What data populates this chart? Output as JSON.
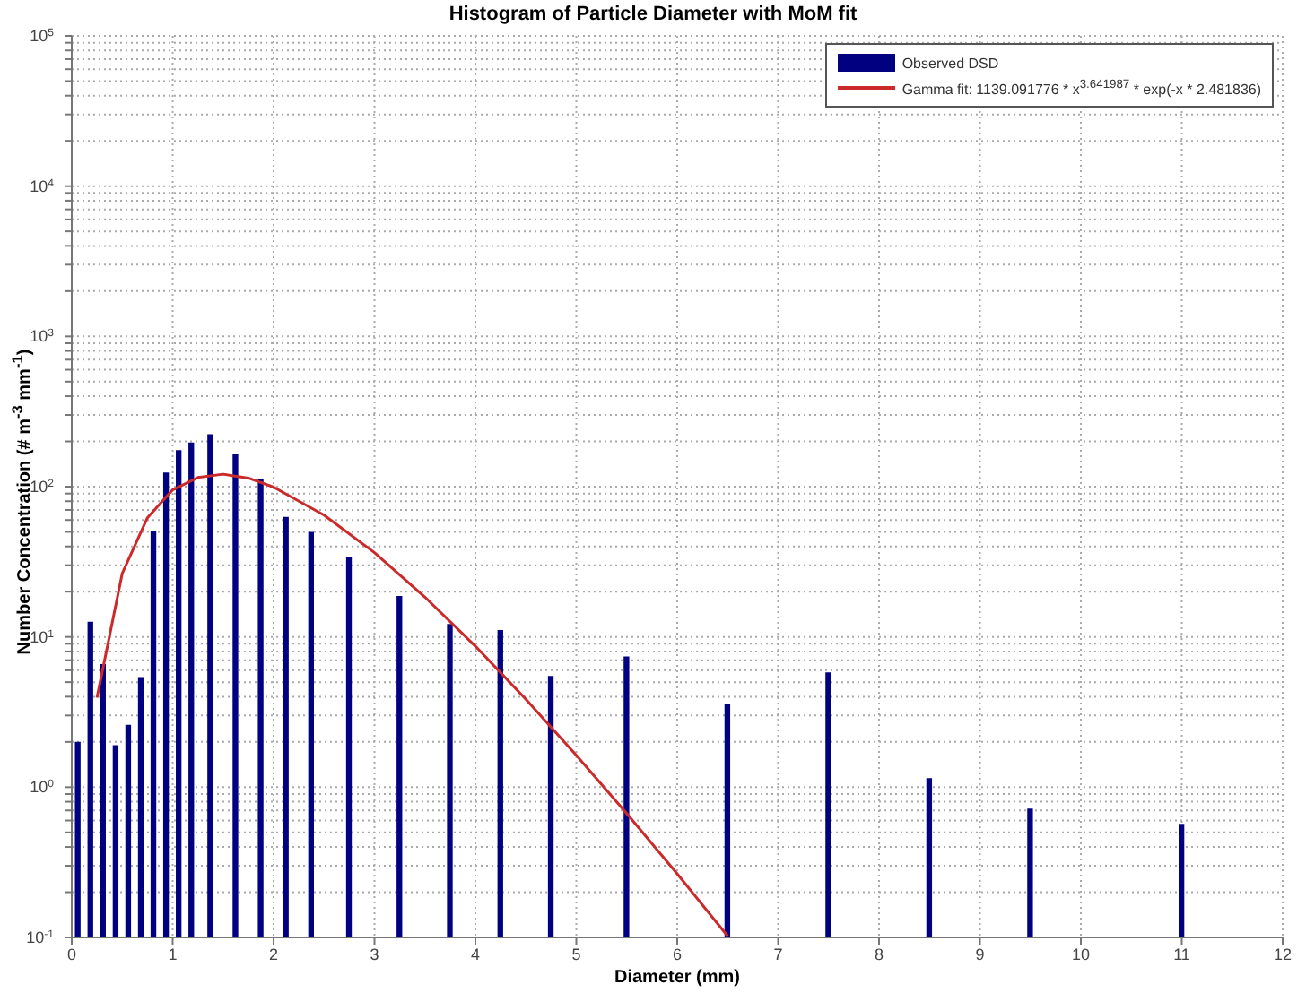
{
  "chart_data": {
    "type": "bar",
    "title": "Histogram of Particle Diameter with MoM fit",
    "xlabel": "Diameter (mm)",
    "ylabel": "Number Concentration (# m$^{-3}$ mm$^{-1}$)",
    "x": [
      0.0625,
      0.1875,
      0.3125,
      0.4375,
      0.5625,
      0.6875,
      0.8125,
      0.9375,
      1.0625,
      1.1875,
      1.375,
      1.625,
      1.875,
      2.125,
      2.375,
      2.75,
      3.25,
      3.75,
      4.25,
      4.75,
      5.5,
      6.5,
      7.5,
      8.5,
      9.5,
      11
    ],
    "series": [
      {
        "name": "Observed DSD",
        "color": "#000080",
        "values": [
          2.0,
          12.6,
          6.6,
          1.9,
          2.6,
          5.4,
          51,
          124,
          175,
          197,
          223,
          164,
          112,
          63,
          50,
          34,
          18.7,
          12.2,
          11.1,
          5.5,
          7.4,
          3.6,
          5.8,
          1.15,
          0.72,
          0.57
        ]
      },
      {
        "name": "Gamma fit: 1139.091776 * x$^{3.641987}$ * exp(-x * 2.481836)",
        "type": "line",
        "color": "#cc2a2a",
        "x": [
          0.25,
          0.5,
          0.75,
          1,
          1.25,
          1.5,
          1.75,
          2,
          2.5,
          3,
          3.5,
          4,
          4.5,
          5,
          5.5,
          6,
          6.5
        ],
        "values": [
          3.94,
          26.4,
          62.1,
          95.2,
          115,
          121,
          114,
          99.3,
          64.7,
          36.4,
          18.4,
          8.67,
          3.85,
          1.63,
          0.668,
          0.265,
          0.102
        ]
      }
    ],
    "log": "y",
    "xlim": [
      0,
      12
    ],
    "xticks": [
      0,
      1,
      2,
      3,
      4,
      5,
      6,
      7,
      8,
      9,
      10,
      11,
      12
    ],
    "ylim": [
      0.1,
      100000
    ],
    "yticks": [
      {
        "value": 0.1,
        "label": "10$^{-1}$"
      },
      {
        "value": 0.2,
        "label": null
      },
      {
        "value": 0.3,
        "label": null
      },
      {
        "value": 0.4,
        "label": null
      },
      {
        "value": 0.5,
        "label": null
      },
      {
        "value": 0.6,
        "label": null
      },
      {
        "value": 0.7,
        "label": null
      },
      {
        "value": 0.8,
        "label": null
      },
      {
        "value": 0.9,
        "label": null
      },
      {
        "value": 1,
        "label": "10$^{0}$"
      },
      {
        "value": 2,
        "label": null
      },
      {
        "value": 3,
        "label": null
      },
      {
        "value": 4,
        "label": null
      },
      {
        "value": 5,
        "label": null
      },
      {
        "value": 6,
        "label": null
      },
      {
        "value": 7,
        "label": null
      },
      {
        "value": 8,
        "label": null
      },
      {
        "value": 9,
        "label": null
      },
      {
        "value": 10,
        "label": "10$^{1}$"
      },
      {
        "value": 20,
        "label": null
      },
      {
        "value": 30,
        "label": null
      },
      {
        "value": 40,
        "label": null
      },
      {
        "value": 50,
        "label": null
      },
      {
        "value": 60,
        "label": null
      },
      {
        "value": 70,
        "label": null
      },
      {
        "value": 80,
        "label": null
      },
      {
        "value": 90,
        "label": null
      },
      {
        "value": 100,
        "label": "10$^{2}$"
      },
      {
        "value": 200,
        "label": null
      },
      {
        "value": 300,
        "label": null
      },
      {
        "value": 400,
        "label": null
      },
      {
        "value": 500,
        "label": null
      },
      {
        "value": 600,
        "label": null
      },
      {
        "value": 700,
        "label": null
      },
      {
        "value": 800,
        "label": null
      },
      {
        "value": 900,
        "label": null
      },
      {
        "value": 1000,
        "label": "10$^{3}$"
      },
      {
        "value": 2000,
        "label": null
      },
      {
        "value": 3000,
        "label": null
      },
      {
        "value": 4000,
        "label": null
      },
      {
        "value": 5000,
        "label": null
      },
      {
        "value": 6000,
        "label": null
      },
      {
        "value": 7000,
        "label": null
      },
      {
        "value": 8000,
        "label": null
      },
      {
        "value": 9000,
        "label": null
      },
      {
        "value": 10000,
        "label": "10$^{4}$"
      },
      {
        "value": 20000,
        "label": null
      },
      {
        "value": 30000,
        "label": null
      },
      {
        "value": 40000,
        "label": null
      },
      {
        "value": 50000,
        "label": null
      },
      {
        "value": 60000,
        "label": null
      },
      {
        "value": 70000,
        "label": null
      },
      {
        "value": 80000,
        "label": null
      },
      {
        "value": 90000,
        "label": null
      },
      {
        "value": 100000,
        "label": "10$^{5}$"
      }
    ],
    "grid": true,
    "legend": "top right",
    "marker": "none",
    "line_style": "solid"
  }
}
